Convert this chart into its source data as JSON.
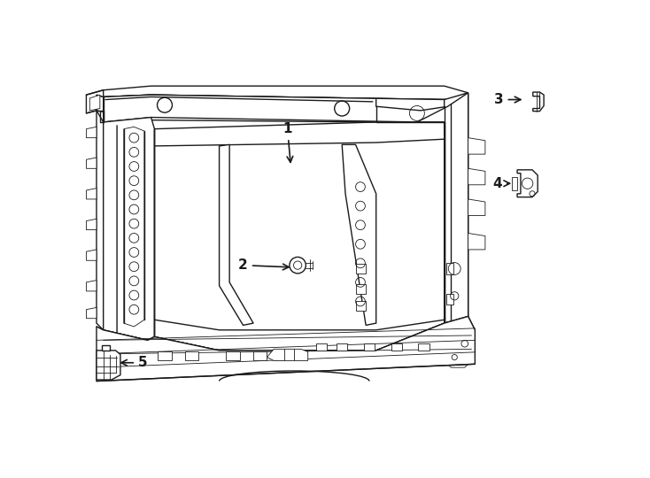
{
  "bg_color": "#ffffff",
  "lc": "#1a1a1a",
  "lw": 1.0,
  "tlw": 0.6,
  "label_fontsize": 11,
  "fig_width": 7.34,
  "fig_height": 5.4,
  "dpi": 100
}
